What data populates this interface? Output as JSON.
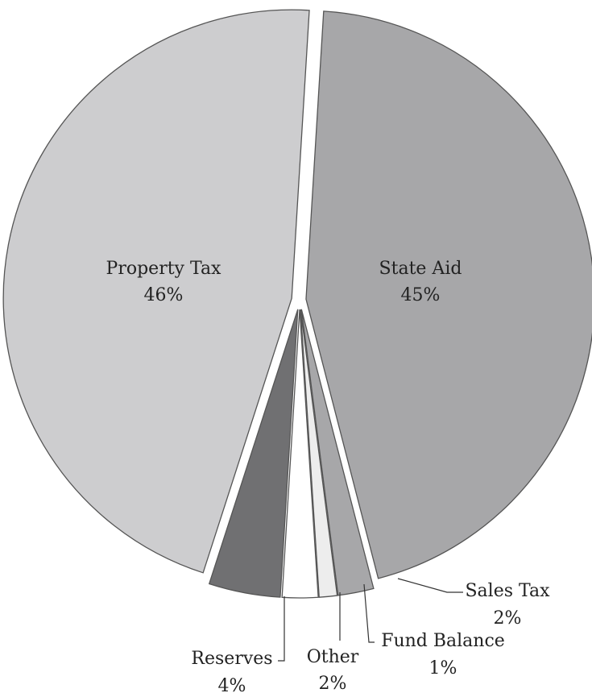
{
  "chart_data": {
    "type": "pie",
    "title": "",
    "exploded": true,
    "slices": [
      {
        "name": "State Aid",
        "value": 45,
        "label": "45%",
        "color": "#a7a7a9",
        "label_placement": "inside"
      },
      {
        "name": "Sales Tax",
        "value": 2,
        "label": "2%",
        "color": "#a7a7a9",
        "label_placement": "outside"
      },
      {
        "name": "Fund Balance",
        "value": 1,
        "label": "1%",
        "color": "#ededed",
        "label_placement": "outside"
      },
      {
        "name": "Other",
        "value": 2,
        "label": "2%",
        "color": "#ffffff",
        "label_placement": "outside"
      },
      {
        "name": "Reserves",
        "value": 4,
        "label": "4%",
        "color": "#707072",
        "label_placement": "outside"
      },
      {
        "name": "Property Tax",
        "value": 46,
        "label": "46%",
        "color": "#cdcdcf",
        "label_placement": "inside"
      }
    ]
  }
}
